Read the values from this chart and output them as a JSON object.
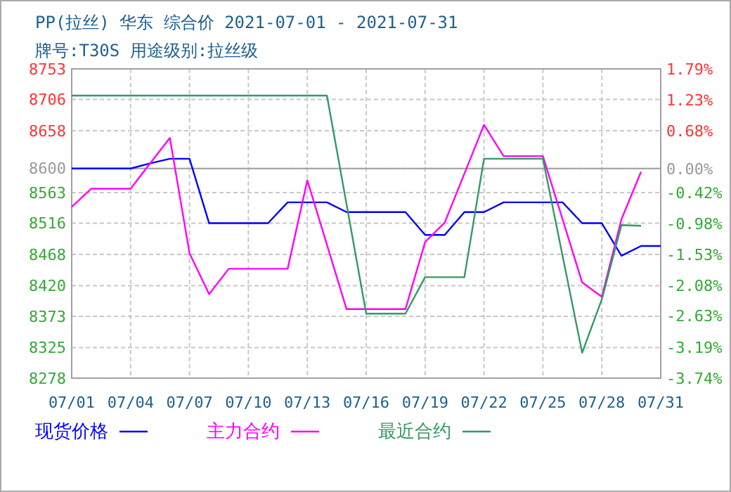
{
  "chart_data": {
    "type": "line",
    "title": "PP(拉丝) 华东 综合价 2021-07-01 - 2021-07-31",
    "subtitle": "牌号:T30S 用途级别:拉丝级",
    "x": [
      "2021-07-01",
      "2021-07-02",
      "2021-07-03",
      "2021-07-04",
      "2021-07-05",
      "2021-07-06",
      "2021-07-07",
      "2021-07-08",
      "2021-07-09",
      "2021-07-10",
      "2021-07-11",
      "2021-07-12",
      "2021-07-13",
      "2021-07-14",
      "2021-07-15",
      "2021-07-16",
      "2021-07-17",
      "2021-07-18",
      "2021-07-19",
      "2021-07-20",
      "2021-07-21",
      "2021-07-22",
      "2021-07-23",
      "2021-07-24",
      "2021-07-25",
      "2021-07-26",
      "2021-07-27",
      "2021-07-28",
      "2021-07-29",
      "2021-07-30",
      "2021-07-31"
    ],
    "series": [
      {
        "name": "现货价格",
        "color": "#0000ff",
        "values": [
          8600,
          8600,
          8600,
          8600,
          8608,
          8615,
          8615,
          8516,
          8516,
          8516,
          8516,
          8548,
          8548,
          8548,
          8533,
          8533,
          8533,
          8533,
          8498,
          8498,
          8533,
          8533,
          8548,
          8548,
          8548,
          8548,
          8516,
          8516,
          8466,
          8481,
          8481
        ]
      },
      {
        "name": "主力合约",
        "color": "#ff00ff",
        "values": [
          8541,
          8569,
          8569,
          8569,
          8608,
          8647,
          8470,
          8407,
          8446,
          8446,
          8446,
          8446,
          8582,
          8483,
          8384,
          8384,
          8384,
          8384,
          8487,
          8517,
          8592,
          8667,
          8619,
          8619,
          8619,
          8522,
          8425,
          8403,
          8522,
          8595,
          null
        ]
      },
      {
        "name": "最近合约",
        "color": "#339966",
        "values": [
          8712,
          8712,
          8712,
          8712,
          8712,
          8712,
          8712,
          8712,
          8712,
          8712,
          8712,
          8712,
          8712,
          8712,
          8545,
          8377,
          8377,
          8377,
          8433,
          8433,
          8433,
          8615,
          8615,
          8615,
          8615,
          8466,
          8317,
          8399,
          8513,
          8512,
          null
        ]
      }
    ],
    "xlim": [
      "2021-07-01",
      "2021-07-31"
    ],
    "xticks": [
      {
        "value": "2021-07-01",
        "label": "07/01"
      },
      {
        "value": "2021-07-04",
        "label": "07/04"
      },
      {
        "value": "2021-07-07",
        "label": "07/07"
      },
      {
        "value": "2021-07-10",
        "label": "07/10"
      },
      {
        "value": "2021-07-13",
        "label": "07/13"
      },
      {
        "value": "2021-07-16",
        "label": "07/16"
      },
      {
        "value": "2021-07-19",
        "label": "07/19"
      },
      {
        "value": "2021-07-22",
        "label": "07/22"
      },
      {
        "value": "2021-07-25",
        "label": "07/25"
      },
      {
        "value": "2021-07-28",
        "label": "07/28"
      },
      {
        "value": "2021-07-31",
        "label": "07/31"
      }
    ],
    "ylim": [
      8278,
      8753
    ],
    "yticks": [
      8278,
      8325,
      8373,
      8420,
      8468,
      8516,
      8563,
      8600,
      8658,
      8706,
      8753
    ],
    "y2lim": [
      -3.74,
      1.79
    ],
    "y2ticks": [
      {
        "value": -3.74,
        "label": "-3.74%"
      },
      {
        "value": -3.19,
        "label": "-3.19%"
      },
      {
        "value": -2.63,
        "label": "-2.63%"
      },
      {
        "value": -2.08,
        "label": "-2.08%"
      },
      {
        "value": -1.53,
        "label": "-1.53%"
      },
      {
        "value": -0.98,
        "label": "-0.98%"
      },
      {
        "value": -0.42,
        "label": "-0.42%"
      },
      {
        "value": 0,
        "label": "0.00%"
      },
      {
        "value": 0.68,
        "label": "0.68%"
      },
      {
        "value": 1.23,
        "label": "1.23%"
      },
      {
        "value": 1.79,
        "label": "1.79%"
      }
    ],
    "ref_lines": [
      {
        "axis": "y",
        "value": 8600,
        "color": "#a0a0a0"
      }
    ],
    "grid": true,
    "legend": "bottom",
    "marker": "none",
    "line_style": "solid"
  }
}
